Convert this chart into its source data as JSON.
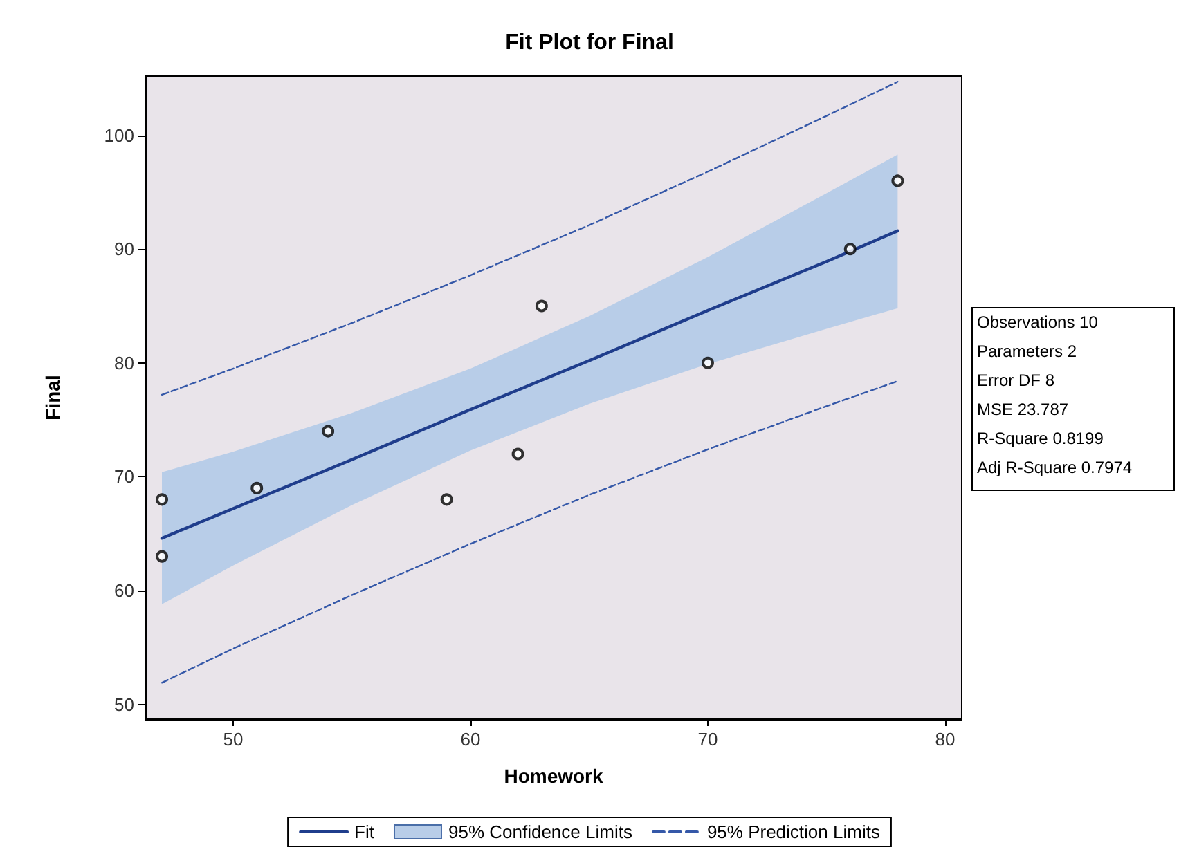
{
  "chart_data": {
    "type": "scatter",
    "title": "Fit Plot for Final",
    "xlabel": "Homework",
    "ylabel": "Final",
    "xlim": [
      46.3,
      80.7
    ],
    "ylim": [
      48.7,
      105.2
    ],
    "xticks": [
      50,
      60,
      70,
      80
    ],
    "yticks": [
      50,
      60,
      70,
      80,
      90,
      100
    ],
    "grid": false,
    "legend": "bottom",
    "marker": "circle",
    "annotations": [
      "95% Confidence Limits",
      "Observations 10",
      "Parameters 2",
      "Error DF 8",
      "MSE 23.787",
      "R-Square 0.8199",
      "Adj R-Square 0.7974"
    ],
    "series": [
      {
        "type": "line",
        "name": "Fit",
        "color": "#1f3d8c",
        "line_style": "solid",
        "marker": "none",
        "x": [
          47,
          50,
          55,
          60,
          65,
          70,
          75,
          78
        ],
        "values": [
          64.6,
          67.2,
          71.5,
          75.9,
          80.2,
          84.6,
          88.9,
          91.6
        ],
        "lower": [
          58.8,
          62.2,
          67.5,
          72.3,
          76.4,
          79.9,
          83.0,
          84.8
        ],
        "upper": [
          70.4,
          72.2,
          75.6,
          79.5,
          84.1,
          89.3,
          94.9,
          98.3
        ]
      },
      {
        "type": "line",
        "name": "95% Prediction Limits",
        "color": "#3558a8",
        "line_style": "dashed",
        "marker": "none",
        "x": [
          47,
          50,
          55,
          60,
          65,
          70,
          75,
          78
        ],
        "values": [
          51.9,
          54.9,
          59.6,
          64.1,
          68.4,
          72.4,
          76.2,
          78.4
        ]
      },
      {
        "type": "line",
        "color": "#3558a8",
        "line_style": "dashed",
        "marker": "none",
        "x": [
          47,
          50,
          55,
          60,
          65,
          70,
          75,
          78
        ],
        "values": [
          77.2,
          79.5,
          83.5,
          87.7,
          92.1,
          96.8,
          101.7,
          104.7
        ]
      },
      {
        "color": "#000000",
        "x": [
          47,
          47,
          51,
          54,
          59,
          62,
          63,
          70,
          76,
          78
        ],
        "values": [
          68,
          63,
          69,
          74,
          68,
          72,
          85,
          80,
          90,
          96
        ]
      }
    ]
  }
}
